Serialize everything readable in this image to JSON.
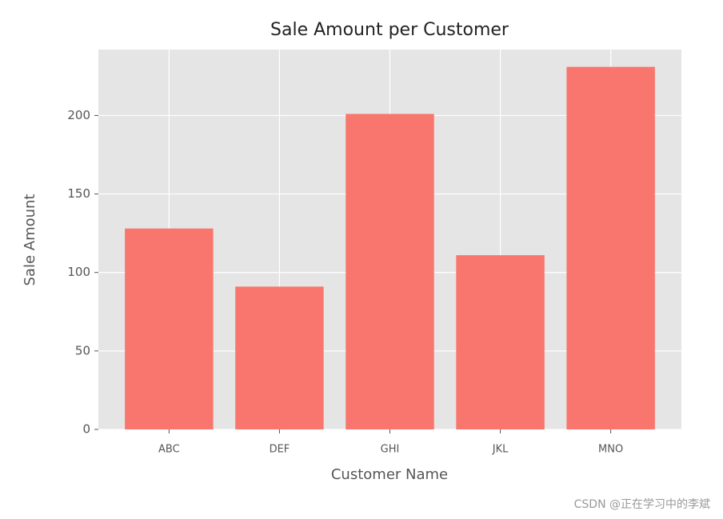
{
  "chart_data": {
    "type": "bar",
    "title": "Sale Amount per Customer",
    "x_label": "Customer Name",
    "y_label": "Sale Amount",
    "categories": [
      "ABC",
      "DEF",
      "GHI",
      "JKL",
      "MNO"
    ],
    "values": [
      128,
      91,
      201,
      111,
      231
    ],
    "color": "#f8766d",
    "ylim": [
      0,
      242
    ],
    "yticks": [
      0,
      50,
      100,
      150,
      200
    ],
    "grid": true
  },
  "watermark": "CSDN @正在学习中的李斌"
}
